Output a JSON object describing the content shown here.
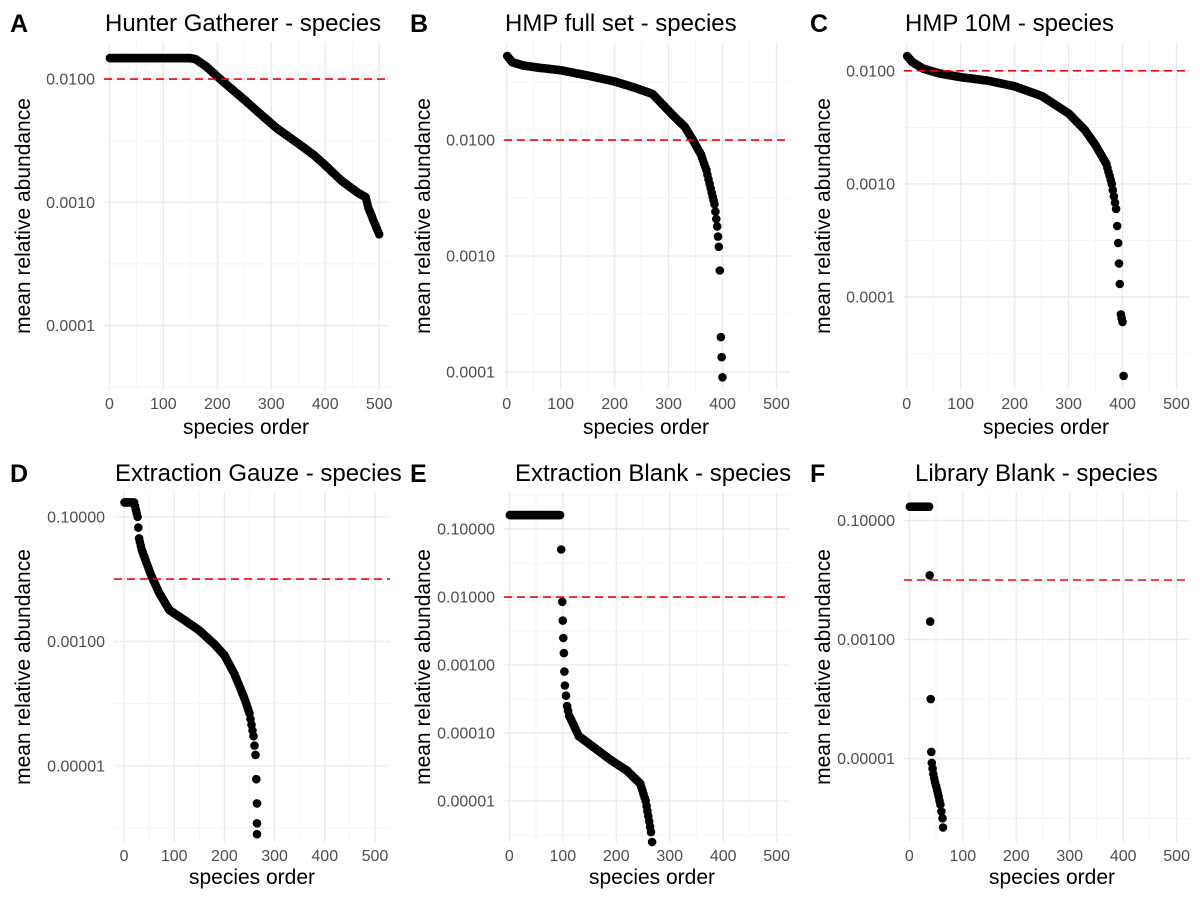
{
  "chart_data": [
    {
      "panel": "A",
      "type": "scatter",
      "title": "Hunter Gatherer - species",
      "xlabel": "species order",
      "ylabel": "mean relative abundance",
      "x_scale": "linear",
      "y_scale": "log10",
      "xlim": [
        -10,
        520
      ],
      "ylim": [
        3e-05,
        0.02
      ],
      "x_ticks": [
        0,
        100,
        200,
        300,
        400,
        500
      ],
      "x_tick_labels": [
        "0",
        "100",
        "200",
        "300",
        "400",
        "500"
      ],
      "y_ticks": [
        0.0001,
        0.001,
        0.01
      ],
      "y_tick_labels": [
        "0.0001",
        "0.0010",
        "0.0100"
      ],
      "reference_line_y": 0.01,
      "reference_line_style": "dashed red",
      "series_points": [
        [
          1,
          0.0148
        ],
        [
          50,
          0.0148
        ],
        [
          100,
          0.0148
        ],
        [
          150,
          0.0148
        ],
        [
          160,
          0.0145
        ],
        [
          180,
          0.0126
        ],
        [
          200,
          0.0105
        ],
        [
          220,
          0.0088
        ],
        [
          250,
          0.0068
        ],
        [
          280,
          0.0052
        ],
        [
          310,
          0.004
        ],
        [
          350,
          0.003
        ],
        [
          380,
          0.0024
        ],
        [
          400,
          0.002
        ],
        [
          430,
          0.0015
        ],
        [
          460,
          0.0012
        ],
        [
          475,
          0.0011
        ],
        [
          480,
          0.0009
        ],
        [
          490,
          0.0007
        ],
        [
          500,
          0.00055
        ]
      ]
    },
    {
      "panel": "B",
      "type": "scatter",
      "title": "HMP full set - species",
      "xlabel": "species order",
      "ylabel": "mean relative abundance",
      "x_scale": "linear",
      "y_scale": "log10",
      "xlim": [
        -5,
        525
      ],
      "ylim": [
        7e-05,
        0.07
      ],
      "x_ticks": [
        0,
        100,
        200,
        300,
        400,
        500
      ],
      "x_tick_labels": [
        "0",
        "100",
        "200",
        "300",
        "400",
        "500"
      ],
      "y_ticks": [
        0.0001,
        0.001,
        0.01
      ],
      "y_tick_labels": [
        "0.0001",
        "0.0010",
        "0.0100"
      ],
      "reference_line_y": 0.01,
      "reference_line_style": "dashed red",
      "series_points": [
        [
          1,
          0.053
        ],
        [
          10,
          0.047
        ],
        [
          30,
          0.044
        ],
        [
          60,
          0.042
        ],
        [
          100,
          0.04
        ],
        [
          150,
          0.036
        ],
        [
          200,
          0.032
        ],
        [
          240,
          0.028
        ],
        [
          270,
          0.025
        ],
        [
          290,
          0.02
        ],
        [
          310,
          0.016
        ],
        [
          330,
          0.013
        ],
        [
          345,
          0.01
        ],
        [
          360,
          0.0075
        ],
        [
          370,
          0.0055
        ],
        [
          380,
          0.0035
        ],
        [
          385,
          0.0028
        ],
        [
          390,
          0.0018
        ],
        [
          393,
          0.0012
        ],
        [
          395,
          0.00075
        ],
        [
          397,
          0.0002
        ],
        [
          400,
          9e-05
        ]
      ]
    },
    {
      "panel": "C",
      "type": "scatter",
      "title": "HMP 10M - species",
      "xlabel": "species order",
      "ylabel": "mean relative abundance",
      "x_scale": "linear",
      "y_scale": "log10",
      "xlim": [
        -5,
        525
      ],
      "ylim": [
        1.5e-05,
        0.018
      ],
      "x_ticks": [
        0,
        100,
        200,
        300,
        400,
        500
      ],
      "x_tick_labels": [
        "0",
        "100",
        "200",
        "300",
        "400",
        "500"
      ],
      "y_ticks": [
        0.0001,
        0.001,
        0.01
      ],
      "y_tick_labels": [
        "0.0001",
        "0.0010",
        "0.0100"
      ],
      "reference_line_y": 0.01,
      "reference_line_style": "dashed red",
      "series_points": [
        [
          1,
          0.0135
        ],
        [
          10,
          0.012
        ],
        [
          30,
          0.0105
        ],
        [
          60,
          0.0095
        ],
        [
          100,
          0.0088
        ],
        [
          150,
          0.0082
        ],
        [
          200,
          0.0073
        ],
        [
          250,
          0.006
        ],
        [
          300,
          0.0042
        ],
        [
          330,
          0.003
        ],
        [
          350,
          0.0022
        ],
        [
          370,
          0.0015
        ],
        [
          380,
          0.001
        ],
        [
          388,
          0.0006
        ],
        [
          392,
          0.0003
        ],
        [
          395,
          0.00013
        ],
        [
          397,
          7e-05
        ],
        [
          400,
          6e-05
        ],
        [
          402,
          2e-05
        ]
      ]
    },
    {
      "panel": "D",
      "type": "scatter",
      "title": "Extraction Gauze - species",
      "xlabel": "species order",
      "ylabel": "mean relative abundance",
      "x_scale": "linear",
      "y_scale": "log10",
      "xlim": [
        -20,
        530
      ],
      "ylim": [
        6e-07,
        0.25
      ],
      "x_ticks": [
        0,
        100,
        200,
        300,
        400,
        500
      ],
      "x_tick_labels": [
        "0",
        "100",
        "200",
        "300",
        "400",
        "500"
      ],
      "y_ticks": [
        1e-05,
        0.001,
        0.1
      ],
      "y_tick_labels": [
        "0.00001",
        "0.00100",
        "0.10000"
      ],
      "reference_line_y": 0.01,
      "reference_line_style": "dashed red",
      "series_points": [
        [
          1,
          0.17
        ],
        [
          10,
          0.17
        ],
        [
          20,
          0.17
        ],
        [
          27,
          0.1
        ],
        [
          30,
          0.045
        ],
        [
          35,
          0.03
        ],
        [
          45,
          0.018
        ],
        [
          55,
          0.011
        ],
        [
          70,
          0.006
        ],
        [
          90,
          0.0032
        ],
        [
          120,
          0.0022
        ],
        [
          150,
          0.0015
        ],
        [
          180,
          0.0009
        ],
        [
          200,
          0.0006
        ],
        [
          220,
          0.0003
        ],
        [
          240,
          0.00012
        ],
        [
          250,
          7e-05
        ],
        [
          258,
          3e-05
        ],
        [
          262,
          1.5e-05
        ],
        [
          265,
          2.5e-06
        ],
        [
          265,
          1.2e-06
        ],
        [
          265,
          8e-07
        ]
      ]
    },
    {
      "panel": "E",
      "type": "scatter",
      "title": "Extraction Blank - species",
      "xlabel": "species order",
      "ylabel": "mean relative abundance",
      "x_scale": "linear",
      "y_scale": "log10",
      "xlim": [
        -10,
        525
      ],
      "ylim": [
        2.5e-06,
        0.35
      ],
      "x_ticks": [
        0,
        100,
        200,
        300,
        400,
        500
      ],
      "x_tick_labels": [
        "0",
        "100",
        "200",
        "300",
        "400",
        "500"
      ],
      "y_ticks": [
        1e-05,
        0.0001,
        0.001,
        0.01,
        0.1
      ],
      "y_tick_labels": [
        "0.00001",
        "0.00010",
        "0.00100",
        "0.01000",
        "0.10000"
      ],
      "reference_line_y": 0.01,
      "reference_line_style": "dashed red",
      "series_points": [
        [
          1,
          0.16
        ],
        [
          30,
          0.16
        ],
        [
          60,
          0.16
        ],
        [
          95,
          0.16
        ],
        [
          97,
          0.05
        ],
        [
          99,
          0.0085
        ],
        [
          100,
          0.0045
        ],
        [
          101,
          0.0025
        ],
        [
          102,
          0.0015
        ],
        [
          103,
          0.0008
        ],
        [
          104,
          0.0005
        ],
        [
          108,
          0.00025
        ],
        [
          112,
          0.00018
        ],
        [
          130,
          9e-05
        ],
        [
          160,
          6e-05
        ],
        [
          190,
          4e-05
        ],
        [
          220,
          2.8e-05
        ],
        [
          245,
          1.8e-05
        ],
        [
          255,
          1e-05
        ],
        [
          260,
          6e-06
        ],
        [
          265,
          3.5e-06
        ],
        [
          267,
          2.5e-06
        ]
      ]
    },
    {
      "panel": "F",
      "type": "scatter",
      "title": "Library Blank - species",
      "xlabel": "species order",
      "ylabel": "mean relative abundance",
      "x_scale": "linear",
      "y_scale": "log10",
      "xlim": [
        -10,
        525
      ],
      "ylim": [
        4e-07,
        0.3
      ],
      "x_ticks": [
        0,
        100,
        200,
        300,
        400,
        500
      ],
      "x_tick_labels": [
        "0",
        "100",
        "200",
        "300",
        "400",
        "500"
      ],
      "y_ticks": [
        1e-05,
        0.001,
        0.1
      ],
      "y_tick_labels": [
        "0.00001",
        "0.00100",
        "0.10000"
      ],
      "reference_line_y": 0.01,
      "reference_line_style": "dashed red",
      "series_points": [
        [
          1,
          0.17
        ],
        [
          10,
          0.17
        ],
        [
          20,
          0.17
        ],
        [
          30,
          0.17
        ],
        [
          37,
          0.17
        ],
        [
          38,
          0.012
        ],
        [
          39,
          0.002
        ],
        [
          40,
          0.0001
        ],
        [
          41,
          1.3e-05
        ],
        [
          42,
          8.5e-06
        ],
        [
          45,
          5.5e-06
        ],
        [
          48,
          4e-06
        ],
        [
          52,
          3e-06
        ],
        [
          55,
          2.3e-06
        ],
        [
          58,
          1.7e-06
        ],
        [
          60,
          1.3e-06
        ],
        [
          62,
          1e-06
        ],
        [
          63,
          7e-07
        ]
      ]
    }
  ],
  "colors": {
    "points": "#000000",
    "reference_line": "#ff0000",
    "grid_major": "#ebebeb",
    "grid_minor": "#f2f2f2",
    "tick_text": "#4d4d4d"
  }
}
